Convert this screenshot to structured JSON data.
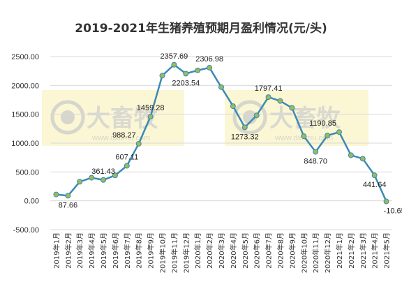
{
  "chart_data": {
    "type": "line",
    "title": "2019-2021年生猪养殖预期月盈利情况(元/头)",
    "ylim": [
      -500,
      2500
    ],
    "yticks": [
      -500,
      0,
      500,
      1000,
      1500,
      2000,
      2500
    ],
    "ytick_labels": [
      "-500.00",
      "0.00",
      "500.00",
      "1000.00",
      "1500.00",
      "2000.00",
      "2500.00"
    ],
    "categories": [
      "2019年1月",
      "2019年2月",
      "2019年3月",
      "2019年4月",
      "2019年5月",
      "2019年6月",
      "2019年7月",
      "2019年8月",
      "2019年9月",
      "2019年10月",
      "2019年11月",
      "2019年12月",
      "2020年1月",
      "2020年2月",
      "2020年3月",
      "2020年4月",
      "2020年5月",
      "2020年6月",
      "2020年7月",
      "2020年8月",
      "2020年9月",
      "2020年10月",
      "2020年11月",
      "2020年12月",
      "2021年1月",
      "2021年2月",
      "2021年3月",
      "2021年4月",
      "2021年5月"
    ],
    "values": [
      110,
      87.66,
      330,
      400,
      361.43,
      440,
      607.11,
      988.27,
      1459.28,
      2170,
      2357.69,
      2203.54,
      2260,
      2306.98,
      1970,
      1640,
      1273.32,
      1480,
      1797.41,
      1730,
      1610,
      1120,
      848.7,
      1130,
      1190.85,
      790,
      730,
      441.64,
      -10.65
    ],
    "data_labels": [
      {
        "index": 1,
        "text": "87.66",
        "pos": "below"
      },
      {
        "index": 4,
        "text": "361.43",
        "pos": "above"
      },
      {
        "index": 6,
        "text": "607.11",
        "pos": "above"
      },
      {
        "index": 7,
        "text": "988.27",
        "pos": "above-left"
      },
      {
        "index": 8,
        "text": "1459.28",
        "pos": "above"
      },
      {
        "index": 10,
        "text": "2357.69",
        "pos": "above"
      },
      {
        "index": 11,
        "text": "2203.54",
        "pos": "below"
      },
      {
        "index": 13,
        "text": "2306.98",
        "pos": "above"
      },
      {
        "index": 16,
        "text": "1273.32",
        "pos": "below"
      },
      {
        "index": 18,
        "text": "1797.41",
        "pos": "above"
      },
      {
        "index": 22,
        "text": "848.70",
        "pos": "below"
      },
      {
        "index": 24,
        "text": "1190.85",
        "pos": "above-left"
      },
      {
        "index": 27,
        "text": "441.64",
        "pos": "below"
      },
      {
        "index": 28,
        "text": "-10.65",
        "pos": "below"
      }
    ],
    "line_color": "#3b8ab5",
    "marker_color": "#9bbb59",
    "grid": true,
    "legend": "none"
  },
  "watermark": {
    "text": "大畜牧",
    "subtext": "www.dxumu.com",
    "colors": {
      "box": "#fbf6d4",
      "text": "#d6d6cc"
    }
  }
}
